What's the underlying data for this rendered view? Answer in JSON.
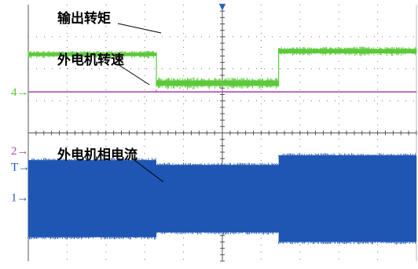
{
  "chart_data": {
    "type": "line",
    "title": "",
    "xlabel": "",
    "ylabel": "",
    "grid": true,
    "time_divisions": 10,
    "amplitude_divisions": 8,
    "trigger_marker": "▼",
    "series": [
      {
        "name": "输出转矩",
        "color": "#5cc93a",
        "kind": "noisy_band",
        "segments": [
          {
            "x": [
              0,
              3.3
            ],
            "center": 6.45,
            "halfwidth": 0.07
          },
          {
            "x": [
              3.3,
              6.45
            ],
            "center": 5.55,
            "halfwidth": 0.11
          },
          {
            "x": [
              6.45,
              10
            ],
            "center": 6.55,
            "halfwidth": 0.09
          }
        ],
        "ground_marker": "4",
        "ground_level": 5.28,
        "ground_color": "#5cc93a"
      },
      {
        "name": "外电机转速",
        "color": "#b04ab0",
        "kind": "line",
        "level": 5.28,
        "x_range": [
          0,
          10
        ]
      },
      {
        "name": "外电机相电流",
        "color": "#1f56b3",
        "kind": "solid_band",
        "segments": [
          {
            "x": [
              0,
              3.3
            ],
            "center": 1.95,
            "halfwidth": 1.2
          },
          {
            "x": [
              3.3,
              6.45
            ],
            "center": 1.95,
            "halfwidth": 1.05
          },
          {
            "x": [
              6.45,
              10
            ],
            "center": 1.95,
            "halfwidth": 1.35
          }
        ],
        "ground_marker": "1",
        "ground_level": 2.0,
        "ground_color": "#1f56b3"
      }
    ],
    "extra_markers": [
      {
        "text": "2",
        "level": 3.45,
        "color": "#b04ab0"
      },
      {
        "text": "T",
        "level": 2.95,
        "color": "#1f56b3"
      }
    ]
  }
}
